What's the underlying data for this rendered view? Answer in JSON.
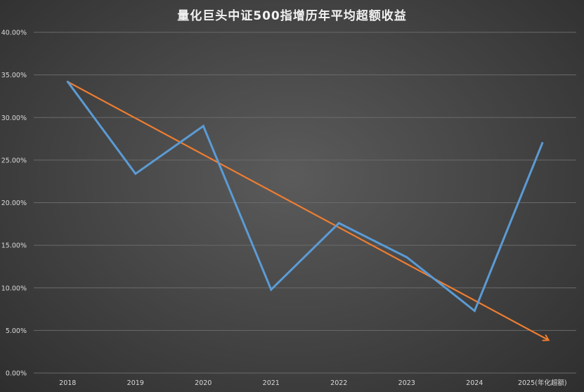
{
  "chart_data": {
    "type": "line",
    "title": "量化巨头中证500指增历年平均超额收益",
    "categories": [
      "2018",
      "2019",
      "2020",
      "2021",
      "2022",
      "2023",
      "2024",
      "2025(年化超额)"
    ],
    "series": [
      {
        "values": [
          34.2,
          23.4,
          29.0,
          9.8,
          17.6,
          13.6,
          7.3,
          27.0
        ],
        "color": "#5b9bd5"
      }
    ],
    "trend": {
      "start": 34.2,
      "end": 3.9,
      "color": "#ed7d31",
      "style": "arrow"
    },
    "ylim": [
      0,
      40
    ],
    "yticks": [
      0,
      5,
      10,
      15,
      20,
      25,
      30,
      35,
      40
    ],
    "ytick_labels": [
      "0.00%",
      "5.00%",
      "10.00%",
      "15.00%",
      "20.00%",
      "25.00%",
      "30.00%",
      "35.00%",
      "40.00%"
    ],
    "grid": true,
    "grid_color": "#6a6a6a",
    "background": "#474747"
  }
}
